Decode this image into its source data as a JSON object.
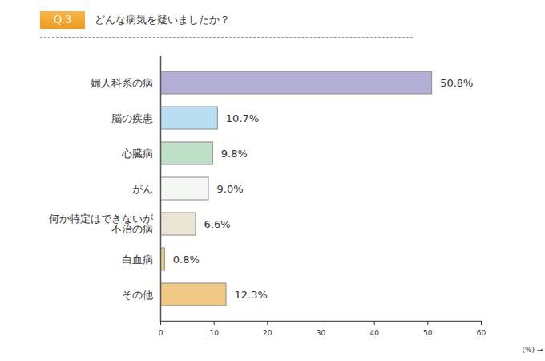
{
  "chart_data": {
    "type": "bar",
    "orientation": "horizontal",
    "title": "どんな病気を疑いましたか？",
    "annotations": [
      "Q.3"
    ],
    "xlabel": "(%)",
    "categories": [
      "婦人科系の病",
      "脳の疾患",
      "心臓病",
      "がん",
      "何か特定はできないが\n不治の病",
      "白血病",
      "その他"
    ],
    "values": [
      50.8,
      10.7,
      9.8,
      9.0,
      6.6,
      0.8,
      12.3
    ],
    "value_labels": [
      "50.8%",
      "10.7%",
      "9.8%",
      "9.0%",
      "6.6%",
      "0.8%",
      "12.3%"
    ],
    "data_labels": true,
    "colors": [
      "#b3aed4",
      "#b9ddf1",
      "#bfe0c6",
      "#f5f7f5",
      "#ebe5d4",
      "#e9cf8a",
      "#f0c985"
    ],
    "xlim": [
      0,
      60
    ],
    "xticks": [
      0,
      10,
      20,
      30,
      40,
      50,
      60
    ],
    "grid": false
  }
}
